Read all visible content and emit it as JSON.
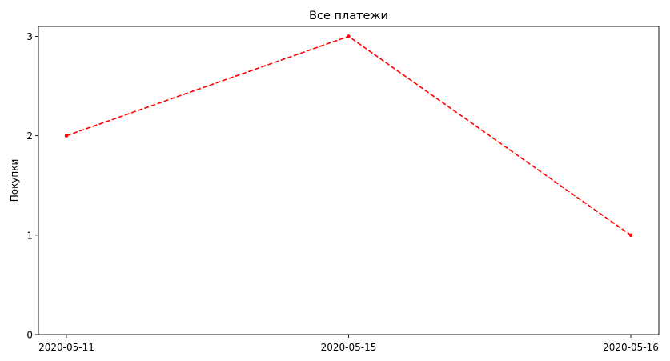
{
  "chart_data": {
    "type": "line",
    "title": "Все платежи",
    "xlabel": "",
    "ylabel": "Покупки",
    "categories": [
      "2020-05-11",
      "2020-05-15",
      "2020-05-16"
    ],
    "series": [
      {
        "values": [
          2,
          3,
          1
        ],
        "color": "#ff0000",
        "line_style": "dashed",
        "marker": "dot"
      }
    ],
    "yticks": [
      0,
      1,
      2,
      3
    ],
    "ylim": [
      0,
      3.1
    ],
    "grid": false,
    "legend": "none"
  }
}
